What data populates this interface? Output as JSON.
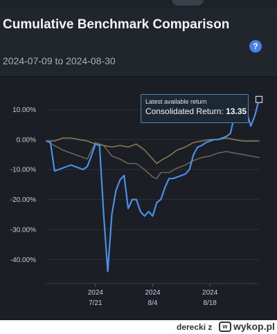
{
  "header": {
    "title": "Cumulative Benchmark Comparison",
    "date_range": "2024-07-09 to 2024-08-30",
    "help_icon": "?"
  },
  "tooltip": {
    "title": "Latest available return",
    "label": "Consolidated Return: ",
    "value": "13.35"
  },
  "footer": {
    "user": "derecki",
    "user_suffix": "z",
    "logo_mark": "w",
    "logo_text": "wykop.pl"
  },
  "colors": {
    "consolidated": "#4a8fe8",
    "benchmark_1": "#8a7a58",
    "benchmark_2": "#6b6650"
  },
  "chart_data": {
    "type": "line",
    "y_ticks": [
      "10.00%",
      "0.00%",
      "-10.00%",
      "-20.00%",
      "-30.00%",
      "-40.00%"
    ],
    "y_tick_values": [
      10,
      0,
      -10,
      -20,
      -30,
      -40
    ],
    "ylim": [
      -47,
      16
    ],
    "xlim": [
      "2024-07-09",
      "2024-08-30"
    ],
    "x_ticks": [
      {
        "date": "2024-07-21",
        "year": "2024",
        "label": "7/21"
      },
      {
        "date": "2024-08-04",
        "year": "2024",
        "label": "8/4"
      },
      {
        "date": "2024-08-18",
        "year": "2024",
        "label": "8/18"
      }
    ],
    "grid": true,
    "series": [
      {
        "key": "consolidated",
        "x": [
          "2024-07-09",
          "2024-07-10",
          "2024-07-11",
          "2024-07-12",
          "2024-07-15",
          "2024-07-16",
          "2024-07-17",
          "2024-07-18",
          "2024-07-19",
          "2024-07-20",
          "2024-07-21",
          "2024-07-22",
          "2024-07-23",
          "2024-07-24",
          "2024-07-25",
          "2024-07-26",
          "2024-07-27",
          "2024-07-28",
          "2024-07-29",
          "2024-07-30",
          "2024-07-31",
          "2024-08-01",
          "2024-08-02",
          "2024-08-03",
          "2024-08-04",
          "2024-08-05",
          "2024-08-06",
          "2024-08-07",
          "2024-08-08",
          "2024-08-09",
          "2024-08-10",
          "2024-08-12",
          "2024-08-13",
          "2024-08-14",
          "2024-08-15",
          "2024-08-16",
          "2024-08-17",
          "2024-08-19",
          "2024-08-20",
          "2024-08-21",
          "2024-08-22",
          "2024-08-23",
          "2024-08-24",
          "2024-08-25",
          "2024-08-26",
          "2024-08-27",
          "2024-08-28",
          "2024-08-29",
          "2024-08-30"
        ],
        "y": [
          -0.5,
          -1,
          -10.5,
          -10,
          -8.5,
          -9,
          -9.5,
          -10,
          -9,
          -5.5,
          -1.5,
          -2,
          -25,
          -44,
          -25,
          -17,
          -13.5,
          -12,
          -23,
          -20,
          -20,
          -24,
          -25.5,
          -24,
          -25.5,
          -21,
          -20,
          -16,
          -13,
          -13,
          -12.5,
          -11.5,
          -10,
          -5,
          -2.5,
          -2,
          -1,
          0,
          0,
          0.5,
          1,
          2,
          8,
          10,
          6,
          9,
          4.5,
          8,
          13.35
        ]
      },
      {
        "key": "benchmark_1",
        "x": [
          "2024-07-09",
          "2024-07-11",
          "2024-07-13",
          "2024-07-15",
          "2024-07-17",
          "2024-07-19",
          "2024-07-21",
          "2024-07-23",
          "2024-07-25",
          "2024-07-27",
          "2024-07-29",
          "2024-07-31",
          "2024-08-02",
          "2024-08-04",
          "2024-08-05",
          "2024-08-06",
          "2024-08-08",
          "2024-08-10",
          "2024-08-12",
          "2024-08-14",
          "2024-08-16",
          "2024-08-18",
          "2024-08-20",
          "2024-08-22",
          "2024-08-24",
          "2024-08-26",
          "2024-08-28",
          "2024-08-30"
        ],
        "y": [
          -0.5,
          -0.5,
          0.5,
          0.5,
          0,
          -0.5,
          -1.5,
          -2,
          -2.5,
          -2,
          -2.5,
          -1.5,
          -3.5,
          -6.5,
          -8,
          -7,
          -5.5,
          -3.5,
          -2.5,
          -1,
          -0.5,
          0,
          0,
          0.5,
          0,
          -0.5,
          -0.5,
          -0.5
        ]
      },
      {
        "key": "benchmark_2",
        "x": [
          "2024-07-09",
          "2024-07-11",
          "2024-07-13",
          "2024-07-15",
          "2024-07-17",
          "2024-07-19",
          "2024-07-21",
          "2024-07-23",
          "2024-07-25",
          "2024-07-27",
          "2024-07-29",
          "2024-07-31",
          "2024-08-02",
          "2024-08-04",
          "2024-08-05",
          "2024-08-06",
          "2024-08-08",
          "2024-08-10",
          "2024-08-12",
          "2024-08-14",
          "2024-08-16",
          "2024-08-18",
          "2024-08-20",
          "2024-08-22",
          "2024-08-24",
          "2024-08-26",
          "2024-08-28",
          "2024-08-30"
        ],
        "y": [
          -0.5,
          -2,
          -3.5,
          -4.5,
          -5.5,
          -6.5,
          -1,
          -2,
          -5.5,
          -6.5,
          -8,
          -8,
          -10,
          -12.5,
          -13,
          -11,
          -11,
          -9.5,
          -8.5,
          -7,
          -6,
          -5.5,
          -4.5,
          -4,
          -4.5,
          -5,
          -5.5,
          -6
        ]
      }
    ]
  }
}
